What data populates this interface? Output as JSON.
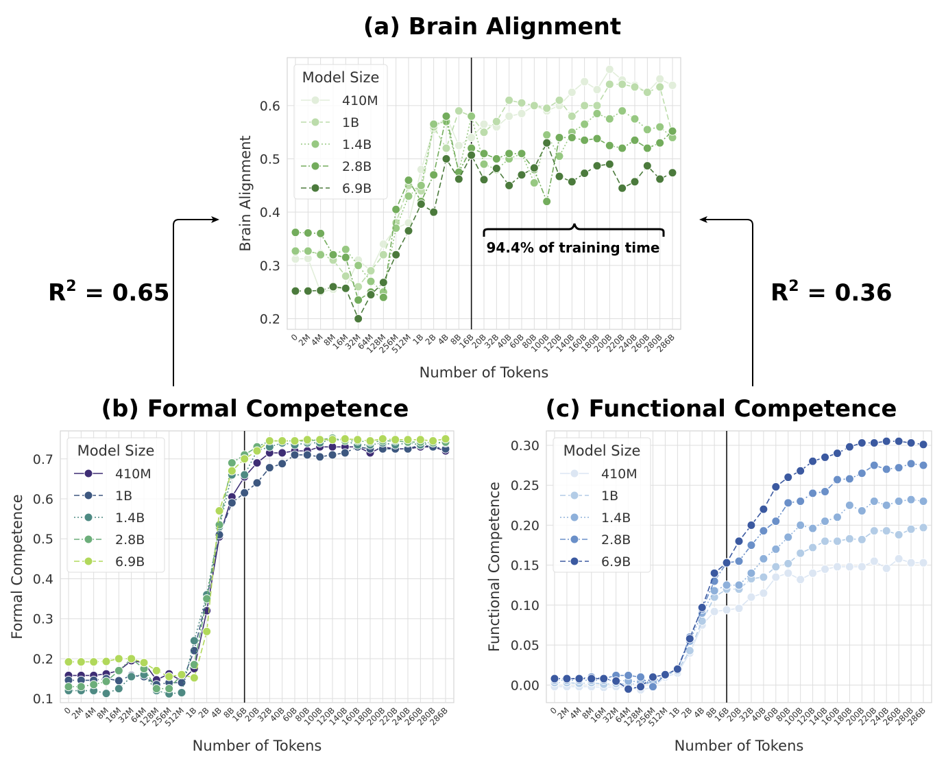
{
  "x_tick_labels": [
    "0",
    "2M",
    "4M",
    "8M",
    "16M",
    "32M",
    "64M",
    "128M",
    "256M",
    "512M",
    "1B",
    "2B",
    "4B",
    "8B",
    "16B",
    "20B",
    "32B",
    "40B",
    "60B",
    "80B",
    "100B",
    "120B",
    "140B",
    "160B",
    "180B",
    "200B",
    "220B",
    "240B",
    "260B",
    "280B",
    "286B"
  ],
  "annotations": {
    "r2_left": "R",
    "r2_left_sup": "2",
    "r2_left_value": " = 0.65",
    "r2_right": "R",
    "r2_right_sup": "2",
    "r2_right_value": " = 0.36",
    "training_time": "94.4% of training time"
  },
  "chart_data": [
    {
      "id": "brain",
      "type": "line",
      "title": "(a) Brain Alignment",
      "xlabel": "Number of Tokens",
      "ylabel": "Brain Alignment",
      "ylim": [
        0.18,
        0.69
      ],
      "yticks": [
        0.2,
        0.3,
        0.4,
        0.5,
        0.6
      ],
      "ytick_labels": [
        "0.2",
        "0.3",
        "0.4",
        "0.5",
        "0.6"
      ],
      "grid": true,
      "legend_title": "Model Size",
      "legend_position": "top-left",
      "vline_at_category": "16B",
      "series": [
        {
          "name": "410M",
          "color": "#e2eedb",
          "dash": "",
          "values": [
            0.312,
            0.313,
            0.25,
            0.255,
            0.258,
            0.31,
            0.29,
            0.34,
            0.37,
            0.38,
            0.48,
            0.555,
            0.58,
            0.525,
            0.54,
            0.565,
            0.56,
            0.58,
            0.585,
            0.6,
            0.59,
            0.6,
            0.625,
            0.645,
            0.63,
            0.668,
            0.648,
            0.638,
            0.625,
            0.65,
            0.638
          ]
        },
        {
          "name": "1B",
          "color": "#bcdcab",
          "dash": "8,4",
          "values": [
            0.325,
            0.326,
            0.322,
            0.31,
            0.28,
            0.26,
            0.29,
            0.32,
            0.38,
            0.45,
            0.44,
            0.56,
            0.52,
            0.59,
            0.58,
            0.55,
            0.57,
            0.61,
            0.605,
            0.6,
            0.595,
            0.61,
            0.58,
            0.6,
            0.6,
            0.64,
            0.64,
            0.635,
            0.625,
            0.635,
            0.545
          ]
        },
        {
          "name": "1.4B",
          "color": "#97c882",
          "dash": "2,3",
          "values": [
            0.327,
            0.327,
            0.32,
            0.32,
            0.33,
            0.3,
            0.27,
            0.25,
            0.37,
            0.43,
            0.45,
            0.565,
            0.57,
            0.475,
            0.58,
            0.49,
            0.48,
            0.5,
            0.51,
            0.455,
            0.545,
            0.505,
            0.55,
            0.565,
            0.585,
            0.575,
            0.59,
            0.575,
            0.555,
            0.56,
            0.54
          ]
        },
        {
          "name": "2.8B",
          "color": "#73ac5c",
          "dash": "8,3,2,3",
          "values": [
            0.362,
            0.361,
            0.36,
            0.32,
            0.315,
            0.235,
            0.25,
            0.24,
            0.405,
            0.46,
            0.42,
            0.47,
            0.58,
            0.475,
            0.52,
            0.51,
            0.5,
            0.51,
            0.51,
            0.48,
            0.42,
            0.54,
            0.54,
            0.535,
            0.538,
            0.525,
            0.52,
            0.535,
            0.52,
            0.53,
            0.552
          ]
        },
        {
          "name": "6.9B",
          "color": "#4b7a3c",
          "dash": "8,4",
          "values": [
            0.252,
            0.252,
            0.253,
            0.26,
            0.257,
            0.2,
            0.245,
            0.268,
            0.32,
            0.365,
            0.415,
            0.4,
            0.5,
            0.462,
            0.507,
            0.461,
            0.482,
            0.45,
            0.47,
            0.483,
            0.53,
            0.467,
            0.457,
            0.473,
            0.487,
            0.49,
            0.445,
            0.457,
            0.487,
            0.462,
            0.474
          ]
        }
      ]
    },
    {
      "id": "formal",
      "type": "line",
      "title": "(b) Formal Competence",
      "xlabel": "Number of Tokens",
      "ylabel": "Formal Competence",
      "ylim": [
        0.09,
        0.77
      ],
      "yticks": [
        0.1,
        0.2,
        0.3,
        0.4,
        0.5,
        0.6,
        0.7
      ],
      "ytick_labels": [
        "0.1",
        "0.2",
        "0.3",
        "0.4",
        "0.5",
        "0.6",
        "0.7"
      ],
      "grid": true,
      "legend_title": "Model Size",
      "legend_position": "top-left",
      "vline_at_category": "16B",
      "series": [
        {
          "name": "410M",
          "color": "#3e2d74",
          "dash": "",
          "values": [
            0.158,
            0.158,
            0.158,
            0.162,
            0.17,
            0.195,
            0.19,
            0.147,
            0.162,
            0.145,
            0.175,
            0.32,
            0.505,
            0.605,
            0.655,
            0.69,
            0.715,
            0.715,
            0.72,
            0.72,
            0.73,
            0.73,
            0.73,
            0.73,
            0.715,
            0.73,
            0.725,
            0.725,
            0.73,
            0.73,
            0.72
          ]
        },
        {
          "name": "1B",
          "color": "#3d577f",
          "dash": "8,4",
          "values": [
            0.146,
            0.146,
            0.146,
            0.15,
            0.145,
            0.158,
            0.155,
            0.135,
            0.14,
            0.14,
            0.22,
            0.35,
            0.51,
            0.59,
            0.615,
            0.64,
            0.678,
            0.688,
            0.71,
            0.71,
            0.705,
            0.71,
            0.715,
            0.73,
            0.725,
            0.725,
            0.725,
            0.725,
            0.735,
            0.73,
            0.725
          ]
        },
        {
          "name": "1.4B",
          "color": "#4e8a83",
          "dash": "2,3",
          "values": [
            0.12,
            0.12,
            0.12,
            0.113,
            0.125,
            0.155,
            0.16,
            0.12,
            0.112,
            0.115,
            0.245,
            0.36,
            0.53,
            0.66,
            0.66,
            0.72,
            0.73,
            0.74,
            0.735,
            0.74,
            0.74,
            0.75,
            0.745,
            0.735,
            0.735,
            0.74,
            0.735,
            0.74,
            0.735,
            0.74,
            0.74
          ]
        },
        {
          "name": "2.8B",
          "color": "#6cae7a",
          "dash": "8,3,2,3",
          "values": [
            0.13,
            0.13,
            0.135,
            0.143,
            0.17,
            0.2,
            0.175,
            0.125,
            0.125,
            0.16,
            0.185,
            0.35,
            0.535,
            0.69,
            0.71,
            0.73,
            0.745,
            0.745,
            0.745,
            0.745,
            0.748,
            0.752,
            0.745,
            0.745,
            0.742,
            0.745,
            0.745,
            0.742,
            0.742,
            0.74,
            0.742
          ]
        },
        {
          "name": "6.9B",
          "color": "#b1d85b",
          "dash": "8,4",
          "values": [
            0.192,
            0.192,
            0.192,
            0.193,
            0.2,
            0.2,
            0.19,
            0.17,
            0.155,
            0.16,
            0.152,
            0.268,
            0.57,
            0.67,
            0.7,
            0.72,
            0.745,
            0.745,
            0.745,
            0.748,
            0.748,
            0.748,
            0.75,
            0.748,
            0.745,
            0.75,
            0.748,
            0.748,
            0.748,
            0.745,
            0.75
          ]
        }
      ]
    },
    {
      "id": "functional",
      "type": "line",
      "title": "(c) Functional Competence",
      "xlabel": "Number of Tokens",
      "ylabel": "Functional Competence",
      "ylim": [
        -0.022,
        0.318
      ],
      "yticks": [
        0.0,
        0.05,
        0.1,
        0.15,
        0.2,
        0.25,
        0.3
      ],
      "ytick_labels": [
        "0.00",
        "0.05",
        "0.10",
        "0.15",
        "0.20",
        "0.25",
        "0.30"
      ],
      "grid": true,
      "legend_title": "Model Size",
      "legend_position": "top-left",
      "vline_at_category": "16B",
      "series": [
        {
          "name": "410M",
          "color": "#dce6f3",
          "dash": "",
          "values": [
            -0.002,
            -0.002,
            -0.002,
            -0.002,
            -0.003,
            -0.002,
            -0.003,
            -0.006,
            -0.003,
            0.01,
            0.015,
            0.04,
            0.075,
            0.092,
            0.094,
            0.096,
            0.11,
            0.115,
            0.135,
            0.14,
            0.132,
            0.14,
            0.145,
            0.148,
            0.148,
            0.148,
            0.155,
            0.146,
            0.158,
            0.153,
            0.153
          ]
        },
        {
          "name": "1B",
          "color": "#b3cce6",
          "dash": "8,4",
          "values": [
            0.003,
            0.003,
            0.002,
            0.003,
            0.001,
            0.002,
            0.001,
            0.002,
            0.002,
            0.012,
            0.018,
            0.043,
            0.08,
            0.11,
            0.12,
            0.12,
            0.133,
            0.135,
            0.148,
            0.152,
            0.165,
            0.172,
            0.18,
            0.18,
            0.183,
            0.182,
            0.193,
            0.193,
            0.188,
            0.195,
            0.197
          ]
        },
        {
          "name": "1.4B",
          "color": "#8eb0da",
          "dash": "2,3",
          "values": [
            0.006,
            0.006,
            0.006,
            0.006,
            0.006,
            0.006,
            0.005,
            0.004,
            0.004,
            0.012,
            0.02,
            0.055,
            0.09,
            0.118,
            0.125,
            0.125,
            0.14,
            0.158,
            0.17,
            0.185,
            0.2,
            0.196,
            0.205,
            0.21,
            0.225,
            0.218,
            0.23,
            0.225,
            0.23,
            0.232,
            0.23
          ]
        },
        {
          "name": "2.8B",
          "color": "#6a8fc8",
          "dash": "8,3,2,3",
          "values": [
            0.008,
            0.008,
            0.008,
            0.01,
            0.008,
            0.012,
            0.012,
            0.01,
            -0.002,
            0.013,
            0.02,
            0.06,
            0.095,
            0.13,
            0.153,
            0.155,
            0.175,
            0.193,
            0.205,
            0.228,
            0.23,
            0.24,
            0.242,
            0.257,
            0.258,
            0.265,
            0.275,
            0.27,
            0.272,
            0.277,
            0.275
          ]
        },
        {
          "name": "6.9B",
          "color": "#3b59a0",
          "dash": "8,4",
          "values": [
            0.008,
            0.008,
            0.008,
            0.008,
            0.008,
            0.005,
            -0.005,
            -0.002,
            0.01,
            0.013,
            0.02,
            0.058,
            0.097,
            0.14,
            0.153,
            0.18,
            0.2,
            0.22,
            0.248,
            0.26,
            0.268,
            0.28,
            0.285,
            0.29,
            0.298,
            0.303,
            0.303,
            0.305,
            0.305,
            0.303,
            0.301
          ]
        }
      ]
    }
  ]
}
